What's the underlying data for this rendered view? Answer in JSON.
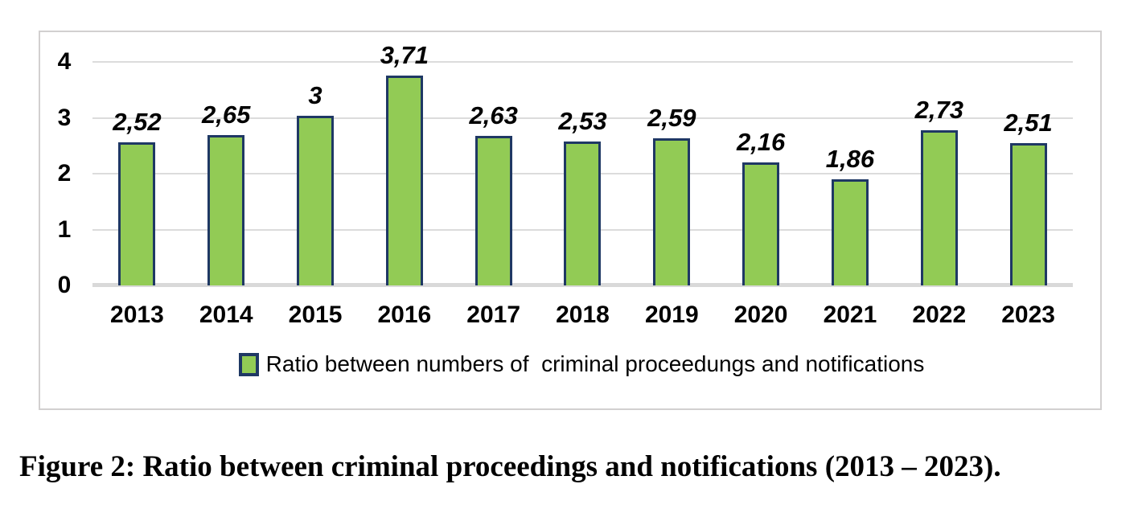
{
  "figure": {
    "caption": "Figure 2: Ratio between criminal proceedings and notifications (2013 – 2023)."
  },
  "chart_data": {
    "type": "bar",
    "categories": [
      "2013",
      "2014",
      "2015",
      "2016",
      "2017",
      "2018",
      "2019",
      "2020",
      "2021",
      "2022",
      "2023"
    ],
    "values": [
      2.52,
      2.65,
      3,
      3.71,
      2.63,
      2.53,
      2.59,
      2.16,
      1.86,
      2.73,
      2.51
    ],
    "value_labels": [
      "2,52",
      "2,65",
      "3",
      "3,71",
      "2,63",
      "2,53",
      "2,59",
      "2,16",
      "1,86",
      "2,73",
      "2,51"
    ],
    "title": "",
    "xlabel": "",
    "ylabel": "",
    "ylim": [
      0,
      4
    ],
    "yticks": [
      0,
      1,
      2,
      3,
      4
    ],
    "grid": true,
    "legend": {
      "position": "bottom",
      "entries": [
        "Ratio between numbers of  criminal proceedungs and notifications"
      ]
    },
    "colors": {
      "bar_fill": "#92cb55",
      "bar_border": "#1f3864",
      "gridline": "#dcdcdc",
      "axis_line": "#d9d9d9",
      "chart_border": "#d2d0d0"
    }
  }
}
